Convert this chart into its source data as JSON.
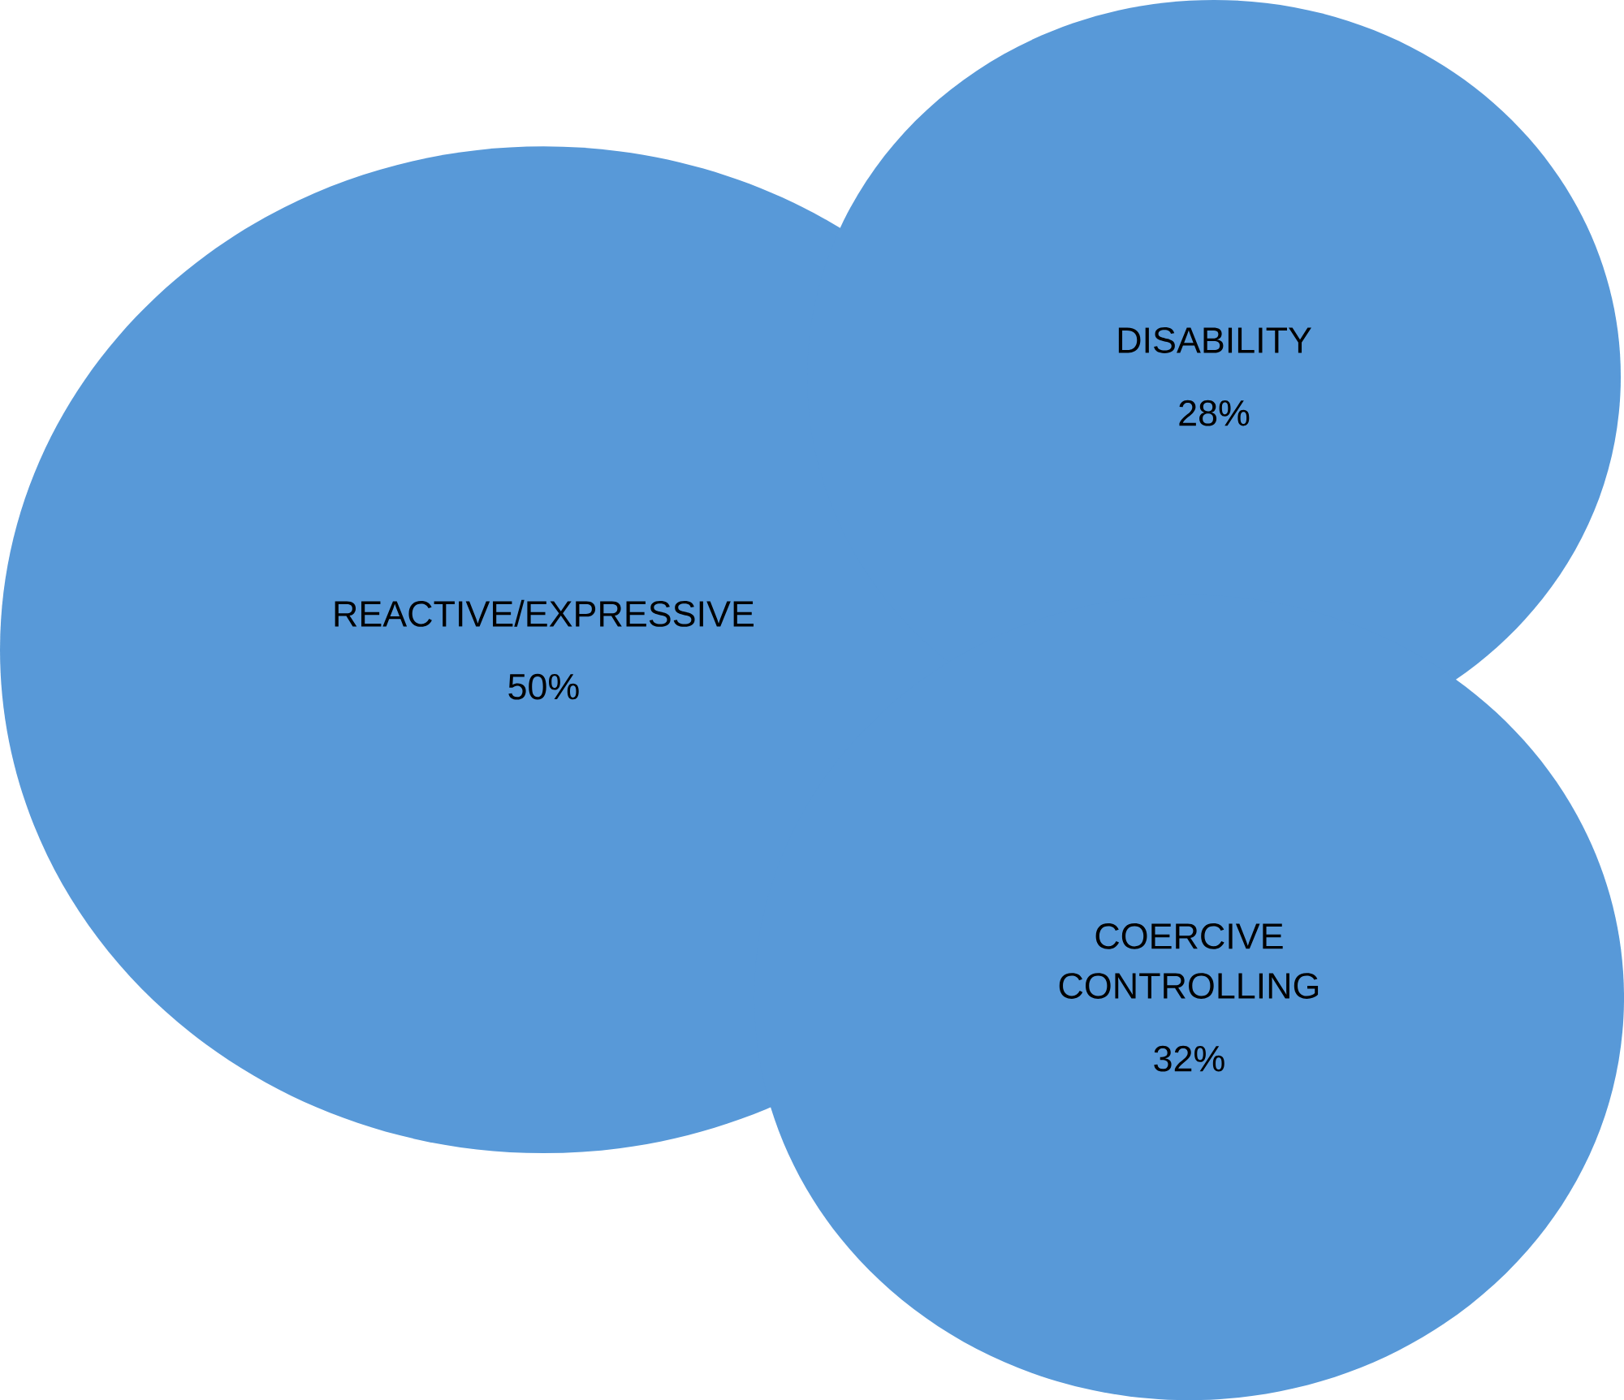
{
  "chart_data": {
    "type": "other",
    "categories": [
      "REACTIVE/EXPRESSIVE",
      "DISABILITY",
      "COERCIVE CONTROLLING"
    ],
    "values": [
      50,
      28,
      32
    ],
    "value_labels": [
      "50%",
      "28%",
      "32%"
    ],
    "colors": [
      "#5899d8",
      "#5899d8",
      "#5899d8"
    ]
  }
}
